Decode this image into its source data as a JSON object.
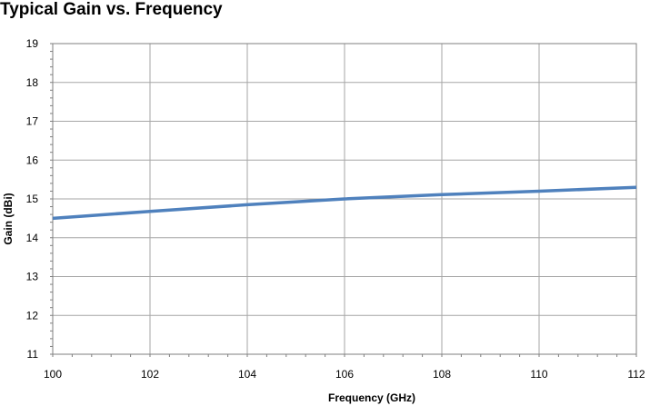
{
  "chart_data": {
    "type": "line",
    "title": "Typical Gain vs. Frequency",
    "xlabel": "Frequency (GHz)",
    "ylabel": "Gain (dBi)",
    "xlim": [
      100,
      112
    ],
    "ylim": [
      11,
      19
    ],
    "x_ticks": [
      100,
      102,
      104,
      106,
      108,
      110,
      112
    ],
    "y_ticks": [
      11,
      12,
      13,
      14,
      15,
      16,
      17,
      18,
      19
    ],
    "grid": true,
    "legend": "none",
    "series": [
      {
        "color": "#4F81BD",
        "x": [
          100,
          102,
          104,
          106,
          108,
          110,
          112
        ],
        "y": [
          14.5,
          14.68,
          14.85,
          15.0,
          15.11,
          15.2,
          15.3
        ]
      }
    ]
  }
}
